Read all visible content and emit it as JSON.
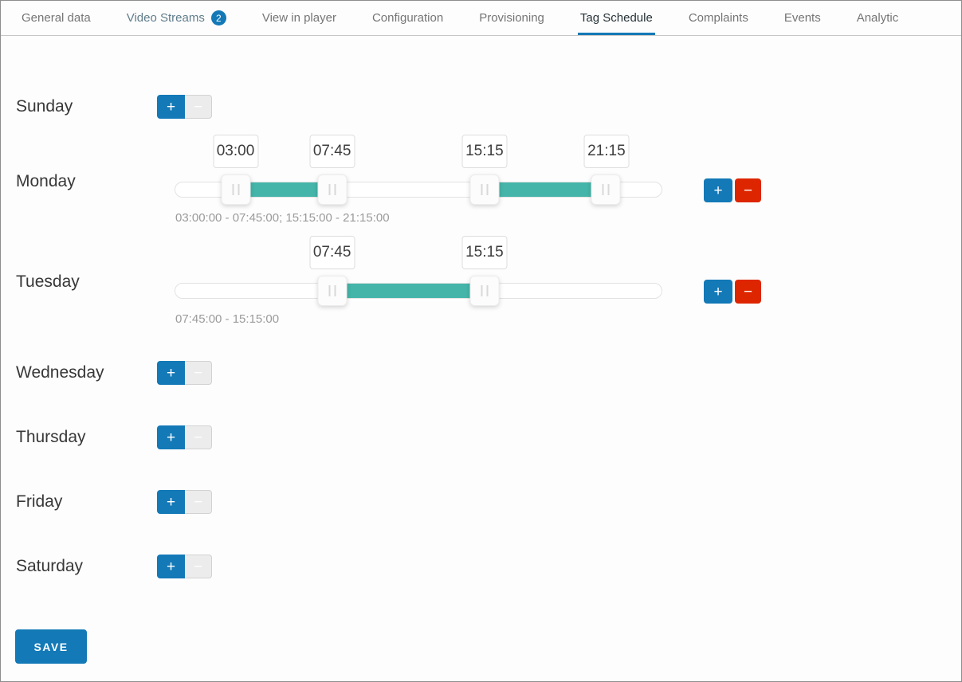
{
  "tabs": {
    "items": [
      {
        "label": "General data",
        "active": false
      },
      {
        "label": "Video Streams",
        "badge": "2",
        "active": false
      },
      {
        "label": "View in player",
        "active": false
      },
      {
        "label": "Configuration",
        "active": false
      },
      {
        "label": "Provisioning",
        "active": false
      },
      {
        "label": "Tag Schedule",
        "active": true
      },
      {
        "label": "Complaints",
        "active": false
      },
      {
        "label": "Events",
        "active": false
      },
      {
        "label": "Analytic",
        "active": false
      }
    ]
  },
  "schedule": {
    "slider": {
      "min_hours": 0,
      "max_hours": 24
    },
    "add_label": "+",
    "remove_label": "−",
    "days": [
      {
        "label": "Sunday",
        "ranges": [],
        "summary": ""
      },
      {
        "label": "Monday",
        "ranges": [
          {
            "start": "03:00",
            "end": "07:45"
          },
          {
            "start": "15:15",
            "end": "21:15"
          }
        ],
        "summary": "03:00:00 - 07:45:00; 15:15:00 - 21:15:00"
      },
      {
        "label": "Tuesday",
        "ranges": [
          {
            "start": "07:45",
            "end": "15:15"
          }
        ],
        "summary": "07:45:00 - 15:15:00"
      },
      {
        "label": "Wednesday",
        "ranges": [],
        "summary": ""
      },
      {
        "label": "Thursday",
        "ranges": [],
        "summary": ""
      },
      {
        "label": "Friday",
        "ranges": [],
        "summary": ""
      },
      {
        "label": "Saturday",
        "ranges": [],
        "summary": ""
      }
    ]
  },
  "save_button": {
    "label": "SAVE"
  },
  "colors": {
    "accent_blue": "#1379b7",
    "danger_red": "#dd2600",
    "range_teal": "#45b5a9",
    "disabled_gray": "#ececec"
  }
}
